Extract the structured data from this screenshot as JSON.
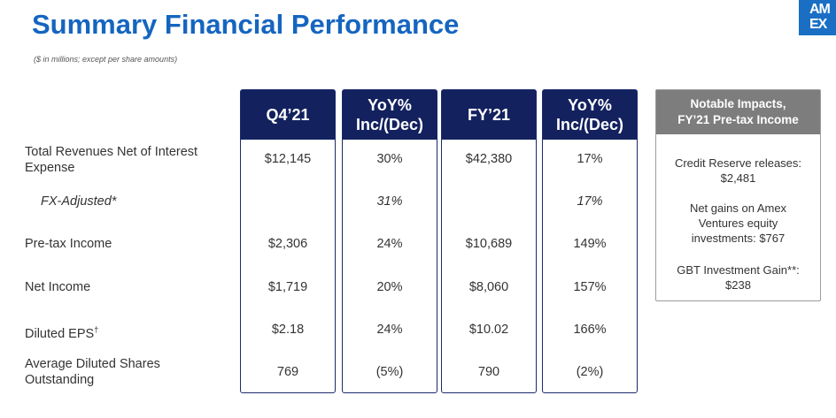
{
  "header": {
    "title": "Summary Financial Performance",
    "subtitle": "($ in millions; except per share amounts)",
    "logo_line1": "AM",
    "logo_line2": "EX"
  },
  "columns": [
    {
      "header_line1": "Q4’21",
      "header_line2": ""
    },
    {
      "header_line1": "YoY%",
      "header_line2": "Inc/(Dec)"
    },
    {
      "header_line1": "FY’21",
      "header_line2": ""
    },
    {
      "header_line1": "YoY%",
      "header_line2": "Inc/(Dec)"
    }
  ],
  "rows": [
    {
      "label_line1": "Total Revenues Net of Interest",
      "label_line2": "Expense",
      "values": [
        "$12,145",
        "30%",
        "$42,380",
        "17%"
      ]
    },
    {
      "label_line1": "FX-Adjusted*",
      "label_line2": "",
      "values": [
        "",
        "31%",
        "",
        "17%"
      ]
    },
    {
      "label_line1": "Pre-tax Income",
      "label_line2": "",
      "values": [
        "$2,306",
        "24%",
        "$10,689",
        "149%"
      ]
    },
    {
      "label_line1": "Net Income",
      "label_line2": "",
      "values": [
        "$1,719",
        "20%",
        "$8,060",
        "157%"
      ]
    },
    {
      "label_line1": "Diluted EPS",
      "label_sup": "†",
      "label_line2": "",
      "values": [
        "$2.18",
        "24%",
        "$10.02",
        "166%"
      ]
    },
    {
      "label_line1": "Average Diluted Shares",
      "label_line2": "Outstanding",
      "values": [
        "769",
        "(5%)",
        "790",
        "(2%)"
      ]
    }
  ],
  "notable": {
    "title_line1": "Notable Impacts,",
    "title_line2": "FY’21 Pre-tax Income",
    "items": [
      {
        "line1": "Credit Reserve releases:",
        "line2": "$2,481",
        "line3": ""
      },
      {
        "line1": "Net gains on Amex",
        "line2": "Ventures equity",
        "line3": "investments: $767"
      },
      {
        "line1": "GBT Investment Gain**:",
        "line2": "$238",
        "line3": ""
      }
    ]
  }
}
